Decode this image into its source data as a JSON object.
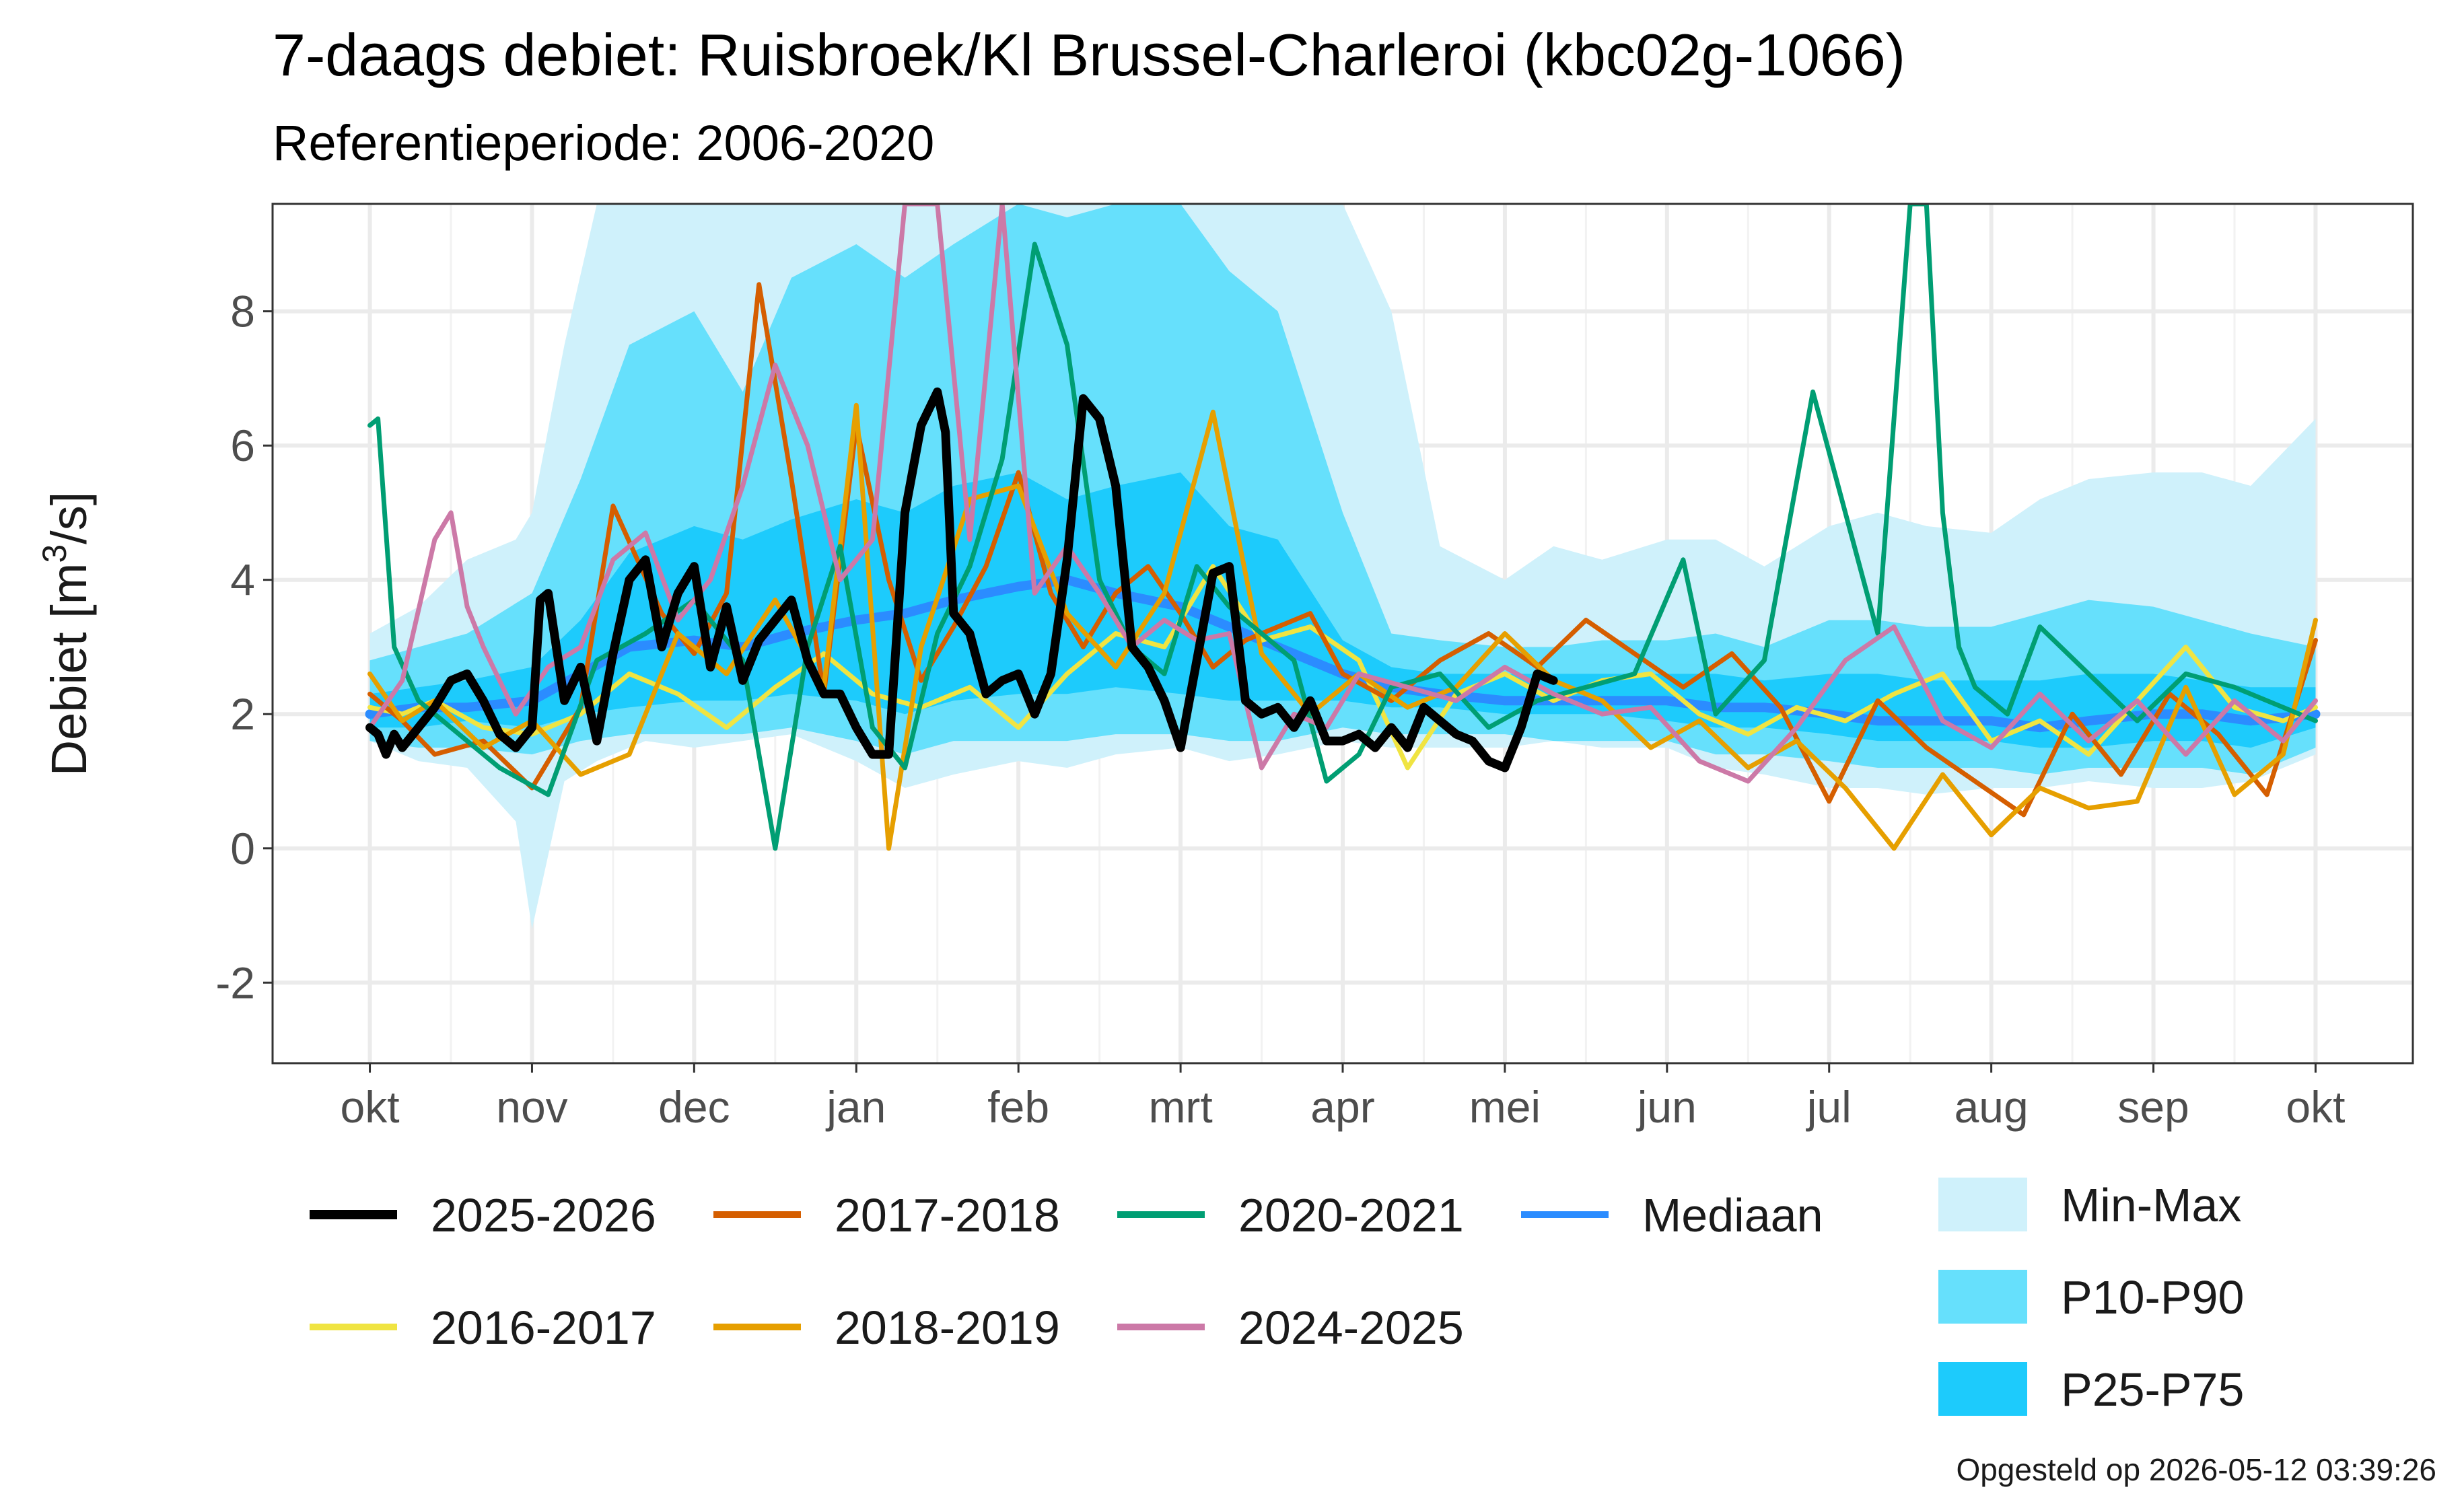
{
  "chart_data": {
    "type": "line",
    "title": "7-daags debiet: Ruisbroek/Kl Brussel-Charleroi (kbc02g-1066)",
    "subtitle": "Referentieperiode: 2006-2020",
    "ylabel_main": "Debiet [m",
    "ylabel_sup": "3",
    "ylabel_tail": "/s]",
    "xlabel": "",
    "caption": "Opgesteld op 2026-05-12 03:39:26",
    "x_ticks": [
      "okt",
      "nov",
      "dec",
      "jan",
      "feb",
      "mrt",
      "apr",
      "mei",
      "jun",
      "jul",
      "aug",
      "sep",
      "okt"
    ],
    "x_ticks_pos": [
      0,
      1,
      2,
      3,
      4,
      5,
      6,
      7,
      8,
      9,
      10,
      11,
      12
    ],
    "y_ticks": [
      -2,
      0,
      2,
      4,
      6,
      8
    ],
    "y_tick_labels": [
      "-2",
      "0",
      "2",
      "4",
      "6",
      "8"
    ],
    "xlim": [
      -0.6,
      12.6
    ],
    "ylim": [
      -3.2,
      9.6
    ],
    "grid": true,
    "legend_position": "bottom",
    "bands": [
      {
        "name": "Min-Max",
        "color": "#cff1fb",
        "x": [
          0,
          0.3,
          0.6,
          0.9,
          1.0,
          1.2,
          1.4,
          1.7,
          2.0,
          2.3,
          2.6,
          3.0,
          3.3,
          3.6,
          4.0,
          4.3,
          4.6,
          5.0,
          5.3,
          5.6,
          6.0,
          6.3,
          6.6,
          7.0,
          7.3,
          7.6,
          8.0,
          8.3,
          8.6,
          9.0,
          9.3,
          9.6,
          10.0,
          10.3,
          10.6,
          11.0,
          11.3,
          11.6,
          12.0
        ],
        "lower": [
          1.6,
          1.3,
          1.2,
          0.4,
          -1.2,
          1.0,
          1.3,
          1.6,
          1.5,
          1.6,
          1.7,
          1.3,
          0.9,
          1.1,
          1.3,
          1.2,
          1.4,
          1.5,
          1.3,
          1.4,
          1.6,
          1.5,
          1.5,
          1.5,
          1.6,
          1.5,
          1.5,
          1.2,
          1.1,
          0.9,
          0.9,
          0.8,
          0.9,
          0.9,
          1.0,
          0.9,
          0.9,
          1.0,
          1.4
        ],
        "upper": [
          3.2,
          3.6,
          4.3,
          4.6,
          5.0,
          7.5,
          9.6,
          9.6,
          9.6,
          9.6,
          9.6,
          9.6,
          9.6,
          9.6,
          9.6,
          9.6,
          9.6,
          9.6,
          9.6,
          9.6,
          9.6,
          8.0,
          4.5,
          4.0,
          4.5,
          4.3,
          4.6,
          4.6,
          4.2,
          4.8,
          5.0,
          4.8,
          4.7,
          5.2,
          5.5,
          5.6,
          5.6,
          5.4,
          6.4
        ]
      },
      {
        "name": "P10-P90",
        "color": "#66e0fc",
        "x": [
          0,
          0.3,
          0.6,
          1.0,
          1.3,
          1.6,
          2.0,
          2.3,
          2.6,
          3.0,
          3.3,
          3.6,
          4.0,
          4.3,
          4.6,
          5.0,
          5.3,
          5.6,
          6.0,
          6.3,
          6.6,
          7.0,
          7.3,
          7.6,
          8.0,
          8.3,
          8.6,
          9.0,
          9.3,
          9.6,
          10.0,
          10.3,
          10.6,
          11.0,
          11.3,
          11.6,
          12.0
        ],
        "lower": [
          1.6,
          1.5,
          1.5,
          1.4,
          1.6,
          1.7,
          1.7,
          1.7,
          1.8,
          1.6,
          1.4,
          1.6,
          1.6,
          1.6,
          1.7,
          1.7,
          1.6,
          1.6,
          1.8,
          1.7,
          1.7,
          1.7,
          1.6,
          1.6,
          1.6,
          1.4,
          1.4,
          1.3,
          1.2,
          1.2,
          1.2,
          1.1,
          1.2,
          1.2,
          1.2,
          1.1,
          1.5
        ],
        "upper": [
          2.8,
          3.0,
          3.2,
          3.8,
          5.5,
          7.5,
          8.0,
          6.8,
          8.5,
          9.0,
          8.5,
          9.0,
          9.6,
          9.4,
          9.6,
          9.6,
          8.6,
          8.0,
          5.0,
          3.2,
          3.1,
          3.0,
          3.0,
          3.1,
          3.1,
          3.2,
          3.0,
          3.4,
          3.4,
          3.3,
          3.3,
          3.5,
          3.7,
          3.6,
          3.4,
          3.2,
          3.0
        ]
      },
      {
        "name": "P25-P75",
        "color": "#1dcbfc",
        "x": [
          0,
          0.3,
          0.6,
          1.0,
          1.3,
          1.6,
          2.0,
          2.3,
          2.6,
          3.0,
          3.3,
          3.6,
          4.0,
          4.3,
          4.6,
          5.0,
          5.3,
          5.6,
          6.0,
          6.3,
          6.6,
          7.0,
          7.3,
          7.6,
          8.0,
          8.3,
          8.6,
          9.0,
          9.3,
          9.6,
          10.0,
          10.3,
          10.6,
          11.0,
          11.3,
          11.6,
          12.0
        ],
        "lower": [
          1.8,
          1.8,
          1.9,
          1.8,
          2.0,
          2.1,
          2.2,
          2.2,
          2.3,
          2.2,
          2.0,
          2.2,
          2.3,
          2.3,
          2.4,
          2.3,
          2.2,
          2.2,
          2.2,
          2.1,
          2.1,
          2.0,
          2.0,
          2.0,
          1.9,
          1.8,
          1.8,
          1.7,
          1.6,
          1.6,
          1.6,
          1.5,
          1.5,
          1.6,
          1.6,
          1.5,
          1.8
        ],
        "upper": [
          2.3,
          2.4,
          2.5,
          2.7,
          3.4,
          4.4,
          4.8,
          4.6,
          4.9,
          5.2,
          5.0,
          5.4,
          5.6,
          5.2,
          5.4,
          5.6,
          4.8,
          4.6,
          3.1,
          2.7,
          2.6,
          2.6,
          2.6,
          2.6,
          2.6,
          2.6,
          2.5,
          2.6,
          2.6,
          2.5,
          2.5,
          2.5,
          2.6,
          2.6,
          2.5,
          2.4,
          2.4
        ]
      }
    ],
    "series": [
      {
        "name": "Mediaan",
        "color": "#2b8cff",
        "width": 14,
        "x": [
          0,
          0.3,
          0.6,
          1.0,
          1.3,
          1.6,
          2.0,
          2.3,
          2.6,
          3.0,
          3.3,
          3.6,
          4.0,
          4.3,
          4.6,
          5.0,
          5.3,
          5.6,
          6.0,
          6.3,
          6.6,
          7.0,
          7.3,
          7.6,
          8.0,
          8.3,
          8.6,
          9.0,
          9.3,
          9.6,
          10.0,
          10.3,
          10.6,
          11.0,
          11.3,
          11.6,
          12.0
        ],
        "y": [
          2.0,
          2.1,
          2.1,
          2.2,
          2.6,
          3.0,
          3.1,
          3.0,
          3.2,
          3.4,
          3.5,
          3.7,
          3.9,
          4.0,
          3.8,
          3.6,
          3.3,
          3.0,
          2.6,
          2.4,
          2.3,
          2.2,
          2.2,
          2.2,
          2.2,
          2.1,
          2.1,
          2.0,
          1.9,
          1.9,
          1.9,
          1.8,
          1.9,
          2.0,
          2.0,
          1.9,
          2.0
        ]
      },
      {
        "name": "2016-2017",
        "color": "#f0e442",
        "width": 7,
        "x": [
          0,
          0.2,
          0.4,
          0.7,
          1.0,
          1.3,
          1.6,
          1.9,
          2.2,
          2.5,
          2.8,
          3.1,
          3.4,
          3.7,
          4.0,
          4.3,
          4.6,
          4.9,
          5.2,
          5.5,
          5.8,
          6.1,
          6.4,
          6.7,
          7.0,
          7.3,
          7.6,
          7.9,
          8.2,
          8.5,
          8.8,
          9.1,
          9.4,
          9.7,
          10.0,
          10.3,
          10.6,
          10.9,
          11.2,
          11.5,
          11.8,
          12.0
        ],
        "y": [
          2.1,
          2.0,
          2.2,
          1.8,
          1.7,
          2.0,
          2.6,
          2.3,
          1.8,
          2.4,
          2.9,
          2.3,
          2.1,
          2.4,
          1.8,
          2.6,
          3.2,
          3.0,
          4.2,
          3.1,
          3.3,
          2.8,
          1.2,
          2.3,
          2.6,
          2.2,
          2.5,
          2.6,
          2.0,
          1.7,
          2.1,
          1.9,
          2.3,
          2.6,
          1.6,
          1.9,
          1.4,
          2.2,
          3.0,
          2.1,
          1.9,
          2.1
        ]
      },
      {
        "name": "2017-2018",
        "color": "#d55e00",
        "width": 7,
        "x": [
          0,
          0.2,
          0.4,
          0.7,
          1.0,
          1.3,
          1.5,
          1.8,
          2.0,
          2.2,
          2.4,
          2.6,
          2.8,
          3.0,
          3.2,
          3.4,
          3.6,
          3.8,
          4.0,
          4.2,
          4.4,
          4.6,
          4.8,
          5.0,
          5.2,
          5.4,
          5.6,
          5.8,
          6.0,
          6.3,
          6.6,
          6.9,
          7.2,
          7.5,
          7.8,
          8.1,
          8.4,
          8.7,
          9.0,
          9.3,
          9.6,
          9.9,
          10.2,
          10.5,
          10.8,
          11.1,
          11.4,
          11.7,
          12.0
        ],
        "y": [
          2.3,
          1.9,
          1.4,
          1.6,
          0.9,
          2.1,
          5.1,
          3.5,
          2.9,
          3.8,
          8.4,
          5.5,
          2.3,
          6.3,
          4.0,
          2.5,
          3.3,
          4.2,
          5.6,
          3.8,
          3.0,
          3.8,
          4.2,
          3.5,
          2.7,
          3.1,
          3.3,
          3.5,
          2.6,
          2.2,
          2.8,
          3.2,
          2.7,
          3.4,
          2.9,
          2.4,
          2.9,
          2.1,
          0.7,
          2.2,
          1.5,
          1.0,
          0.5,
          2.0,
          1.1,
          2.3,
          1.7,
          0.8,
          3.1
        ]
      },
      {
        "name": "2018-2019",
        "color": "#e69f00",
        "width": 7,
        "x": [
          0,
          0.2,
          0.4,
          0.7,
          1.0,
          1.3,
          1.6,
          1.9,
          2.2,
          2.5,
          2.8,
          3.0,
          3.2,
          3.4,
          3.7,
          4.0,
          4.3,
          4.6,
          4.9,
          5.2,
          5.5,
          5.8,
          6.1,
          6.4,
          6.7,
          7.0,
          7.3,
          7.6,
          7.9,
          8.2,
          8.5,
          8.8,
          9.1,
          9.4,
          9.7,
          10.0,
          10.3,
          10.6,
          10.9,
          11.2,
          11.5,
          11.8,
          12.0
        ],
        "y": [
          2.6,
          1.9,
          2.2,
          1.5,
          1.9,
          1.1,
          1.4,
          3.2,
          2.6,
          3.7,
          2.4,
          6.6,
          0.0,
          3.0,
          5.2,
          5.4,
          3.5,
          2.7,
          3.8,
          6.5,
          2.9,
          2.0,
          2.6,
          2.1,
          2.4,
          3.2,
          2.5,
          2.2,
          1.5,
          1.9,
          1.2,
          1.6,
          0.9,
          0.0,
          1.1,
          0.2,
          0.9,
          0.6,
          0.7,
          2.4,
          0.8,
          1.4,
          3.4
        ]
      },
      {
        "name": "2020-2021",
        "color": "#009e73",
        "width": 7,
        "x": [
          0,
          0.05,
          0.15,
          0.3,
          0.5,
          0.8,
          1.1,
          1.4,
          1.7,
          2.0,
          2.3,
          2.5,
          2.7,
          2.9,
          3.1,
          3.3,
          3.5,
          3.7,
          3.9,
          4.1,
          4.3,
          4.5,
          4.7,
          4.9,
          5.1,
          5.3,
          5.5,
          5.7,
          5.9,
          6.1,
          6.3,
          6.6,
          6.9,
          7.2,
          7.5,
          7.8,
          8.1,
          8.3,
          8.6,
          8.9,
          9.1,
          9.3,
          9.5,
          9.6,
          9.7,
          9.8,
          9.9,
          10.1,
          10.3,
          10.6,
          10.9,
          11.2,
          11.5,
          11.8,
          12.0
        ],
        "y": [
          6.3,
          6.4,
          3.0,
          2.2,
          1.8,
          1.2,
          0.8,
          2.8,
          3.2,
          3.7,
          2.8,
          0.0,
          3.0,
          4.5,
          1.8,
          1.2,
          3.2,
          4.2,
          5.8,
          9.0,
          7.5,
          4.0,
          3.0,
          2.6,
          4.2,
          3.6,
          3.2,
          2.8,
          1.0,
          1.4,
          2.4,
          2.6,
          1.8,
          2.2,
          2.4,
          2.6,
          4.3,
          2.0,
          2.8,
          6.8,
          5.0,
          3.2,
          9.6,
          9.6,
          5.0,
          3.0,
          2.4,
          2.0,
          3.3,
          2.6,
          1.9,
          2.6,
          2.4,
          2.1,
          1.9
        ]
      },
      {
        "name": "2024-2025",
        "color": "#cc79a7",
        "width": 7,
        "x": [
          0,
          0.2,
          0.4,
          0.5,
          0.6,
          0.7,
          0.9,
          1.1,
          1.3,
          1.5,
          1.7,
          1.9,
          2.1,
          2.3,
          2.5,
          2.7,
          2.9,
          3.1,
          3.3,
          3.5,
          3.7,
          3.9,
          4.1,
          4.3,
          4.5,
          4.7,
          4.9,
          5.1,
          5.3,
          5.5,
          5.7,
          5.9,
          6.1,
          6.4,
          6.7,
          7.0,
          7.3,
          7.6,
          7.9,
          8.2,
          8.5,
          8.8,
          9.1,
          9.4,
          9.7,
          10.0,
          10.3,
          10.6,
          10.9,
          11.2,
          11.5,
          11.8,
          12.0
        ],
        "y": [
          1.8,
          2.5,
          4.6,
          5.0,
          3.6,
          3.0,
          2.0,
          2.7,
          3.0,
          4.3,
          4.7,
          3.4,
          4.0,
          5.4,
          7.2,
          6.0,
          4.0,
          4.6,
          9.6,
          9.6,
          4.6,
          9.6,
          3.8,
          4.5,
          3.8,
          3.0,
          3.4,
          3.1,
          3.2,
          1.2,
          2.0,
          1.8,
          2.6,
          2.4,
          2.2,
          2.7,
          2.3,
          2.0,
          2.1,
          1.3,
          1.0,
          1.8,
          2.8,
          3.3,
          1.9,
          1.5,
          2.3,
          1.6,
          2.2,
          1.4,
          2.2,
          1.6,
          2.2
        ]
      },
      {
        "name": "2025-2026",
        "color": "#000000",
        "width": 13,
        "x": [
          0,
          0.05,
          0.1,
          0.15,
          0.2,
          0.3,
          0.4,
          0.5,
          0.6,
          0.7,
          0.8,
          0.9,
          1.0,
          1.05,
          1.1,
          1.2,
          1.3,
          1.4,
          1.5,
          1.6,
          1.7,
          1.8,
          1.9,
          2.0,
          2.1,
          2.2,
          2.3,
          2.4,
          2.5,
          2.6,
          2.7,
          2.8,
          2.9,
          3.0,
          3.1,
          3.2,
          3.3,
          3.4,
          3.5,
          3.55,
          3.6,
          3.7,
          3.8,
          3.9,
          4.0,
          4.1,
          4.2,
          4.3,
          4.4,
          4.5,
          4.6,
          4.7,
          4.8,
          4.9,
          5.0,
          5.1,
          5.2,
          5.3,
          5.4,
          5.5,
          5.6,
          5.7,
          5.8,
          5.9,
          6.0,
          6.1,
          6.2,
          6.3,
          6.4,
          6.5,
          6.6,
          6.7,
          6.8,
          6.9,
          7.0,
          7.1,
          7.2,
          7.3
        ],
        "y": [
          1.8,
          1.7,
          1.4,
          1.7,
          1.5,
          1.8,
          2.1,
          2.5,
          2.6,
          2.2,
          1.7,
          1.5,
          1.8,
          3.7,
          3.8,
          2.2,
          2.7,
          1.6,
          2.9,
          4.0,
          4.3,
          3.0,
          3.8,
          4.2,
          2.7,
          3.6,
          2.5,
          3.1,
          3.4,
          3.7,
          2.8,
          2.3,
          2.3,
          1.8,
          1.4,
          1.4,
          5.0,
          6.3,
          6.8,
          6.2,
          3.5,
          3.2,
          2.3,
          2.5,
          2.6,
          2.0,
          2.6,
          4.3,
          6.7,
          6.4,
          5.4,
          3.0,
          2.7,
          2.2,
          1.5,
          2.8,
          4.1,
          4.2,
          2.2,
          2.0,
          2.1,
          1.8,
          2.2,
          1.6,
          1.6,
          1.7,
          1.5,
          1.8,
          1.5,
          2.1,
          1.9,
          1.7,
          1.6,
          1.3,
          1.2,
          1.8,
          2.6,
          2.5
        ]
      }
    ],
    "legend": [
      {
        "label": "2025-2026",
        "color": "#000000",
        "kind": "line"
      },
      {
        "label": "2017-2018",
        "color": "#d55e00",
        "kind": "line"
      },
      {
        "label": "2020-2021",
        "color": "#009e73",
        "kind": "line"
      },
      {
        "label": "Mediaan",
        "color": "#2b8cff",
        "kind": "line"
      },
      {
        "label": "2016-2017",
        "color": "#f0e442",
        "kind": "line"
      },
      {
        "label": "2018-2019",
        "color": "#e69f00",
        "kind": "line"
      },
      {
        "label": "2024-2025",
        "color": "#cc79a7",
        "kind": "line"
      },
      {
        "label": "Min-Max",
        "color": "#cff1fb",
        "kind": "fill"
      },
      {
        "label": "P10-P90",
        "color": "#66e0fc",
        "kind": "fill"
      },
      {
        "label": "P25-P75",
        "color": "#1dcbfc",
        "kind": "fill"
      }
    ]
  }
}
